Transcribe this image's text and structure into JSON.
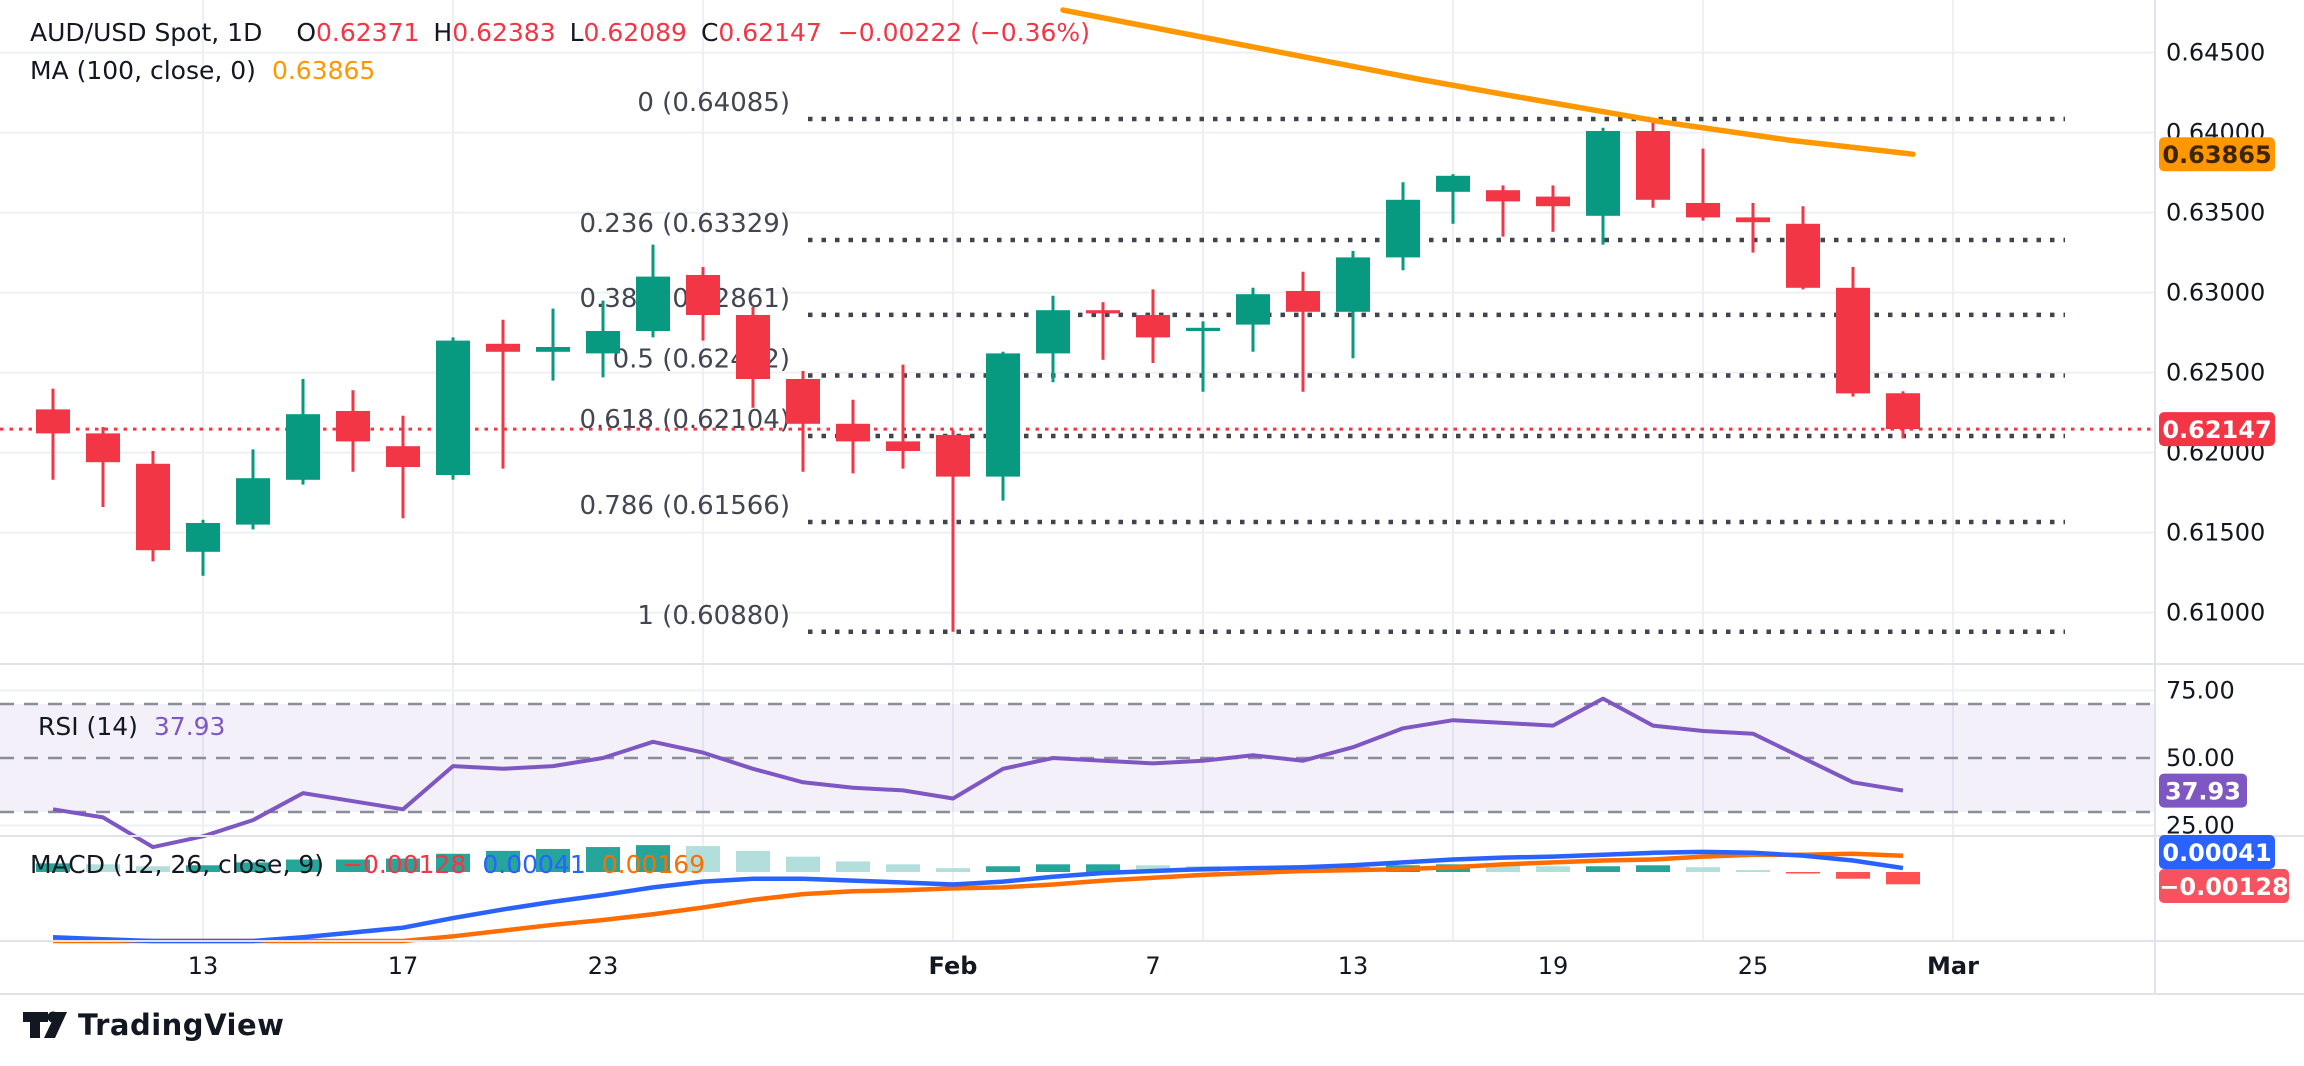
{
  "header": {
    "symbol": "AUD/USD Spot, 1D",
    "ohlc": [
      {
        "k": "O",
        "v": "0.62371"
      },
      {
        "k": "H",
        "v": "0.62383"
      },
      {
        "k": "L",
        "v": "0.62089"
      },
      {
        "k": "C",
        "v": "0.62147"
      }
    ],
    "change": "−0.00222 (−0.36%)",
    "ma_label": "MA (100, close, 0)",
    "ma_value": "0.63865"
  },
  "rsi_legend": {
    "label": "RSI (14)",
    "value": "37.93"
  },
  "macd_legend": {
    "label": "MACD (12, 26, close, 9)",
    "hist": "−0.00128",
    "macd": "0.00041",
    "signal": "0.00169"
  },
  "price_axis": {
    "labels": [
      "0.64500",
      "0.64000",
      "0.63500",
      "0.63000",
      "0.62500",
      "0.62000",
      "0.61500",
      "0.61000"
    ],
    "values": [
      0.645,
      0.64,
      0.635,
      0.63,
      0.625,
      0.62,
      0.615,
      0.61
    ],
    "ma_tag": "0.63865",
    "last_tag": "0.62147"
  },
  "rsi_axis": {
    "labels": [
      "75.00",
      "50.00",
      "25.00"
    ],
    "values": [
      75,
      50,
      25
    ],
    "tag": "37.93"
  },
  "macd_axis": {
    "macd_tag": "0.00041",
    "hist_tag": "−0.00128"
  },
  "time_axis": {
    "labels": [
      "13",
      "17",
      "23",
      "Feb",
      "7",
      "13",
      "19",
      "25",
      "Mar"
    ],
    "indices": [
      3,
      7,
      11,
      18,
      22,
      26,
      30,
      34,
      38
    ],
    "bold": [
      false,
      false,
      false,
      true,
      false,
      false,
      false,
      false,
      true
    ],
    "week_grid_indices": [
      3,
      8,
      13,
      18,
      23,
      28,
      33,
      38
    ]
  },
  "logo": {
    "text": "TradingView"
  },
  "colors": {
    "up": "#089981",
    "down": "#f23645",
    "ma": "#ff9800",
    "rsi_line": "#7e57c2",
    "rsi_band_fill": "rgba(126,87,194,0.09)",
    "macd_line": "#2962ff",
    "signal_line": "#ff6d00",
    "hist_pos_rise": "#26a69a",
    "hist_pos_fall": "#b2dfdb",
    "hist_neg_fall": "#ff5252",
    "hist_neg_rise": "#ffcdd2",
    "grid": "#eef0f6",
    "separator": "#e0e3eb",
    "fib": "#40444f",
    "dashed": "#8a8e9b",
    "text": "#131722",
    "fib_text": "#434651",
    "last_price_line": "#f23645"
  },
  "chart_data": {
    "type": "candlestick",
    "symbol": "AUD/USD Spot",
    "timeframe": "1D",
    "title": "AUD/USD Spot, 1D with MA(100), Fibonacci retracement, RSI(14), MACD(12,26,close,9)",
    "dates": [
      "Jan 8",
      "Jan 9",
      "Jan 10",
      "Jan 13",
      "Jan 14",
      "Jan 15",
      "Jan 16",
      "Jan 17",
      "Jan 20",
      "Jan 21",
      "Jan 22",
      "Jan 23",
      "Jan 24",
      "Jan 27",
      "Jan 28",
      "Jan 29",
      "Jan 30",
      "Jan 31",
      "Feb 3",
      "Feb 4",
      "Feb 5",
      "Feb 6",
      "Feb 7",
      "Feb 10",
      "Feb 11",
      "Feb 12",
      "Feb 13",
      "Feb 14",
      "Feb 17",
      "Feb 18",
      "Feb 19",
      "Feb 20",
      "Feb 21",
      "Feb 24",
      "Feb 25",
      "Feb 26",
      "Feb 27",
      "Feb 28"
    ],
    "open": [
      0.6227,
      0.6212,
      0.6193,
      0.6138,
      0.6155,
      0.6183,
      0.6226,
      0.6204,
      0.6186,
      0.6268,
      0.6263,
      0.6262,
      0.6276,
      0.6311,
      0.6286,
      0.6246,
      0.6218,
      0.6207,
      0.6211,
      0.6185,
      0.6262,
      0.6289,
      0.6286,
      0.6276,
      0.628,
      0.6301,
      0.6288,
      0.6322,
      0.6363,
      0.6364,
      0.636,
      0.6348,
      0.6401,
      0.6356,
      0.6347,
      0.6343,
      0.6303,
      0.62371
    ],
    "high": [
      0.624,
      0.6216,
      0.6201,
      0.6158,
      0.6202,
      0.6246,
      0.6239,
      0.6223,
      0.6272,
      0.6283,
      0.629,
      0.6295,
      0.633,
      0.6316,
      0.6291,
      0.6251,
      0.6233,
      0.6255,
      0.6214,
      0.6263,
      0.6298,
      0.6294,
      0.6302,
      0.6282,
      0.6303,
      0.6313,
      0.6326,
      0.6369,
      0.6374,
      0.6367,
      0.6367,
      0.6403,
      0.64085,
      0.639,
      0.6356,
      0.6354,
      0.6316,
      0.62383
    ],
    "low": [
      0.6183,
      0.6166,
      0.6132,
      0.6123,
      0.6152,
      0.618,
      0.6188,
      0.6159,
      0.6183,
      0.619,
      0.6245,
      0.6247,
      0.6272,
      0.627,
      0.6228,
      0.6188,
      0.6187,
      0.619,
      0.6088,
      0.617,
      0.6244,
      0.6258,
      0.6256,
      0.6238,
      0.6263,
      0.6238,
      0.6259,
      0.6314,
      0.6343,
      0.6335,
      0.6338,
      0.633,
      0.6353,
      0.6345,
      0.6325,
      0.6302,
      0.6235,
      0.62089
    ],
    "close": [
      0.6212,
      0.6194,
      0.6139,
      0.6156,
      0.6184,
      0.6224,
      0.6207,
      0.6191,
      0.627,
      0.6263,
      0.6266,
      0.6276,
      0.631,
      0.6286,
      0.6246,
      0.6218,
      0.6207,
      0.6201,
      0.6185,
      0.6262,
      0.6289,
      0.6287,
      0.6272,
      0.6278,
      0.6299,
      0.6288,
      0.6322,
      0.6358,
      0.6373,
      0.6357,
      0.6354,
      0.6401,
      0.6358,
      0.6347,
      0.6344,
      0.6303,
      0.6237,
      0.62147
    ],
    "last_close": 0.62147,
    "ohlc_last": {
      "open": 0.62371,
      "high": 0.62383,
      "low": 0.62089,
      "close": 0.62147,
      "change": -0.00222,
      "change_pct": -0.36
    },
    "ma100": {
      "period": 100,
      "source": "close",
      "offset": 0,
      "last": 0.63865,
      "points": [
        {
          "i": 20.2,
          "p": 0.64766
        },
        {
          "i": 27.3,
          "p": 0.64335
        },
        {
          "i": 29.3,
          "p": 0.64223
        },
        {
          "i": 32.2,
          "p": 0.64066
        },
        {
          "i": 34.7,
          "p": 0.63954
        },
        {
          "i": 37.2,
          "p": 0.63865
        }
      ]
    },
    "fib": [
      {
        "label": "0 (0.64085)",
        "level": 0,
        "price": 0.64085
      },
      {
        "label": "0.236 (0.63329)",
        "level": 0.236,
        "price": 0.63329
      },
      {
        "label": "0.382 (0.62861)",
        "level": 0.382,
        "price": 0.62861
      },
      {
        "label": "0.5 (0.62482)",
        "level": 0.5,
        "price": 0.62482
      },
      {
        "label": "0.618 (0.62104)",
        "level": 0.618,
        "price": 0.62104
      },
      {
        "label": "0.786 (0.61566)",
        "level": 0.786,
        "price": 0.61566
      },
      {
        "label": "1 (0.60880)",
        "level": 1,
        "price": 0.6088
      }
    ],
    "rsi": {
      "period": 14,
      "last": 37.93,
      "overbought": 70,
      "mid": 50,
      "oversold": 30,
      "values": [
        31,
        28,
        17,
        21,
        27,
        37,
        34,
        31,
        47,
        46,
        47,
        50,
        56,
        52,
        46,
        41,
        39,
        38,
        35,
        46,
        50,
        49,
        48,
        49,
        51,
        49,
        54,
        61,
        64,
        63,
        62,
        72,
        62,
        60,
        59,
        50,
        41,
        37.93
      ]
    },
    "macd": {
      "fast": 12,
      "slow": 26,
      "source": "close",
      "signal_period": 9,
      "last_macd": 0.00041,
      "last_signal": 0.00169,
      "last_hist": -0.00128,
      "macd": [
        -0.0068,
        -0.007,
        -0.0073,
        -0.0074,
        -0.0072,
        -0.0068,
        -0.0063,
        -0.0058,
        -0.0048,
        -0.0039,
        -0.0031,
        -0.0024,
        -0.0016,
        -0.001,
        -0.0007,
        -0.0007,
        -0.0009,
        -0.0011,
        -0.0013,
        -0.001,
        -0.0005,
        -0.0001,
        0.0001,
        0.0003,
        0.0004,
        0.0005,
        0.0007,
        0.001,
        0.0013,
        0.0015,
        0.0016,
        0.0018,
        0.002,
        0.0021,
        0.002,
        0.0017,
        0.0012,
        0.00041
      ],
      "signal": [
        -0.0077,
        -0.0078,
        -0.0079,
        -0.0081,
        -0.0082,
        -0.0081,
        -0.0076,
        -0.0072,
        -0.0067,
        -0.0061,
        -0.0055,
        -0.005,
        -0.0044,
        -0.0037,
        -0.0029,
        -0.0023,
        -0.002,
        -0.0019,
        -0.0017,
        -0.0016,
        -0.0013,
        -0.0009,
        -0.0006,
        -0.0003,
        -0.0001,
        0.0001,
        0.0002,
        0.0003,
        0.0005,
        0.0008,
        0.001,
        0.0012,
        0.0013,
        0.0016,
        0.0018,
        0.0018,
        0.0019,
        0.00169
      ],
      "histogram": [
        0.0009,
        0.0008,
        0.0006,
        0.0007,
        0.001,
        0.0013,
        0.0013,
        0.0014,
        0.0019,
        0.0022,
        0.0024,
        0.0026,
        0.0028,
        0.0027,
        0.0022,
        0.0016,
        0.0011,
        0.0008,
        0.0004,
        0.0006,
        0.0008,
        0.0008,
        0.0007,
        0.0006,
        0.0005,
        0.0004,
        0.0005,
        0.0007,
        0.0008,
        0.0007,
        0.0006,
        0.0006,
        0.0007,
        0.0005,
        0.0002,
        -0.0001,
        -0.0007,
        -0.00128
      ]
    },
    "ylim": [
      0.608,
      0.648
    ],
    "grid": true,
    "xlabel": "",
    "ylabel": ""
  }
}
